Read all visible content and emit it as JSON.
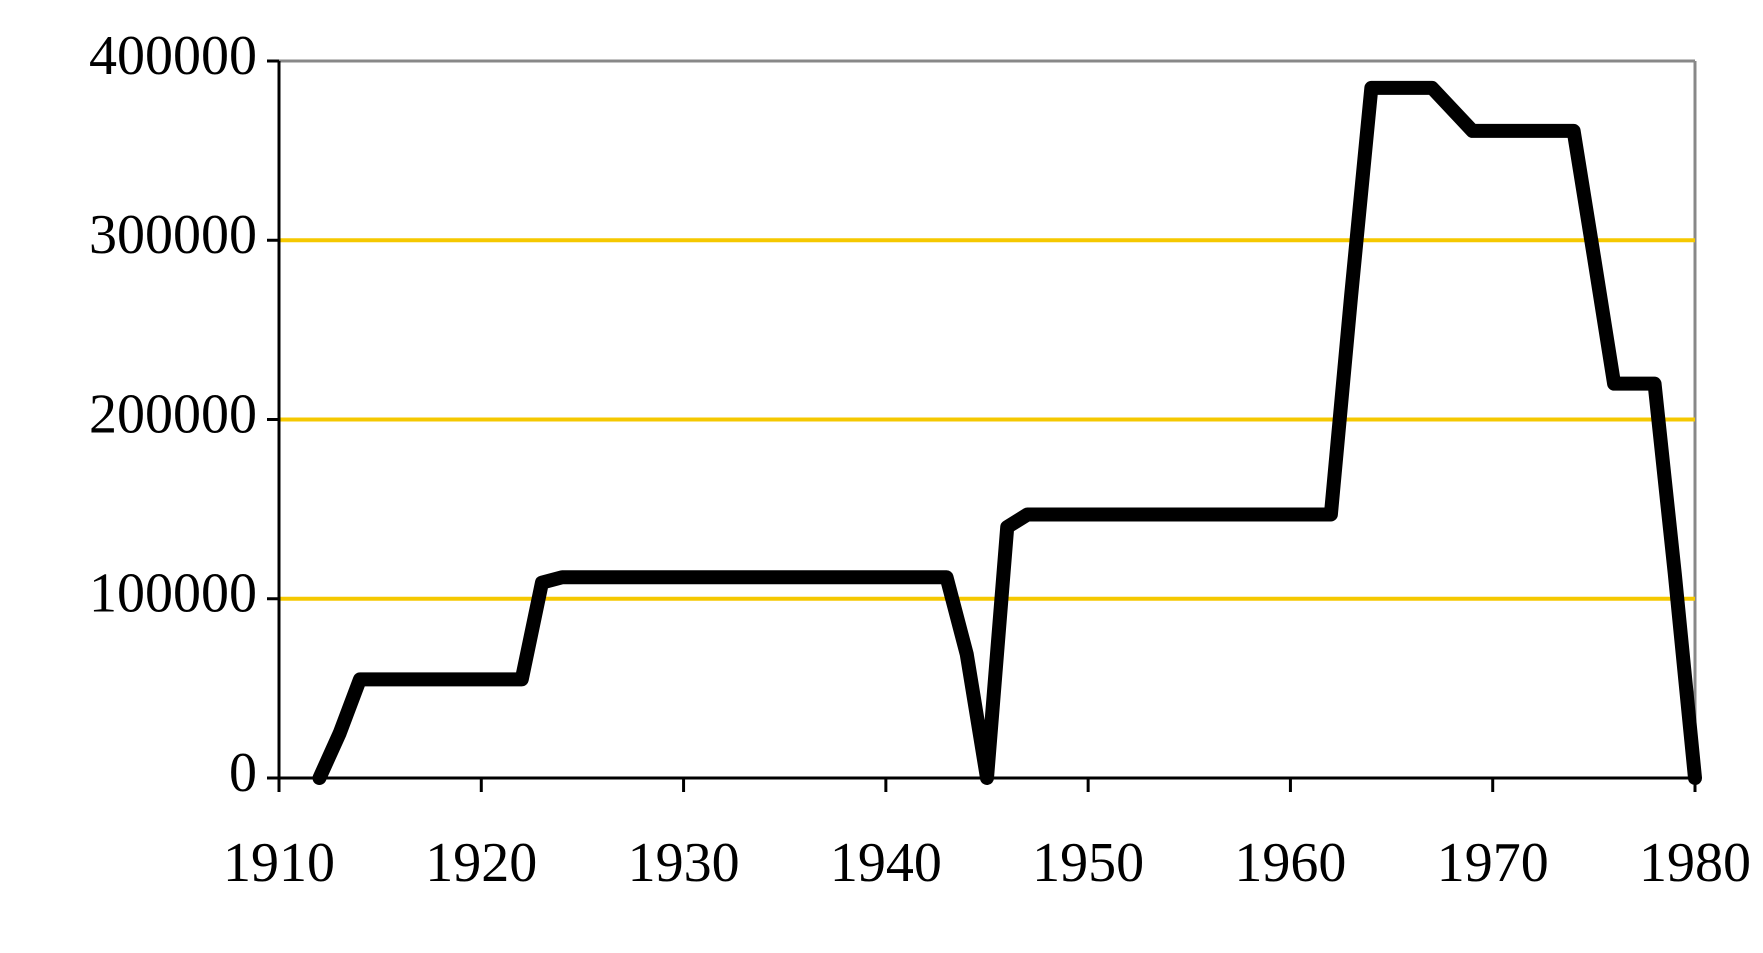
{
  "chart_data": {
    "type": "line",
    "x": [
      1912,
      1913,
      1914,
      1922,
      1923,
      1924,
      1943,
      1944,
      1945,
      1946,
      1947,
      1962,
      1963,
      1964,
      1967,
      1969,
      1974,
      1975,
      1976,
      1978,
      1979,
      1980
    ],
    "series": [
      {
        "color": "#000000",
        "values": [
          0,
          25000,
          55000,
          55000,
          109000,
          112000,
          112000,
          69000,
          0,
          140000,
          147000,
          147000,
          269000,
          385000,
          385000,
          361000,
          361000,
          291000,
          220000,
          220000,
          114000,
          0
        ]
      }
    ],
    "xlim": [
      1910,
      1980
    ],
    "xticks": [
      1910,
      1920,
      1930,
      1940,
      1950,
      1960,
      1970,
      1980
    ],
    "ylim": [
      0,
      400000
    ],
    "yticks": [
      0,
      100000,
      200000,
      300000,
      400000
    ],
    "grid": true,
    "grid_color": "#f5c800"
  }
}
